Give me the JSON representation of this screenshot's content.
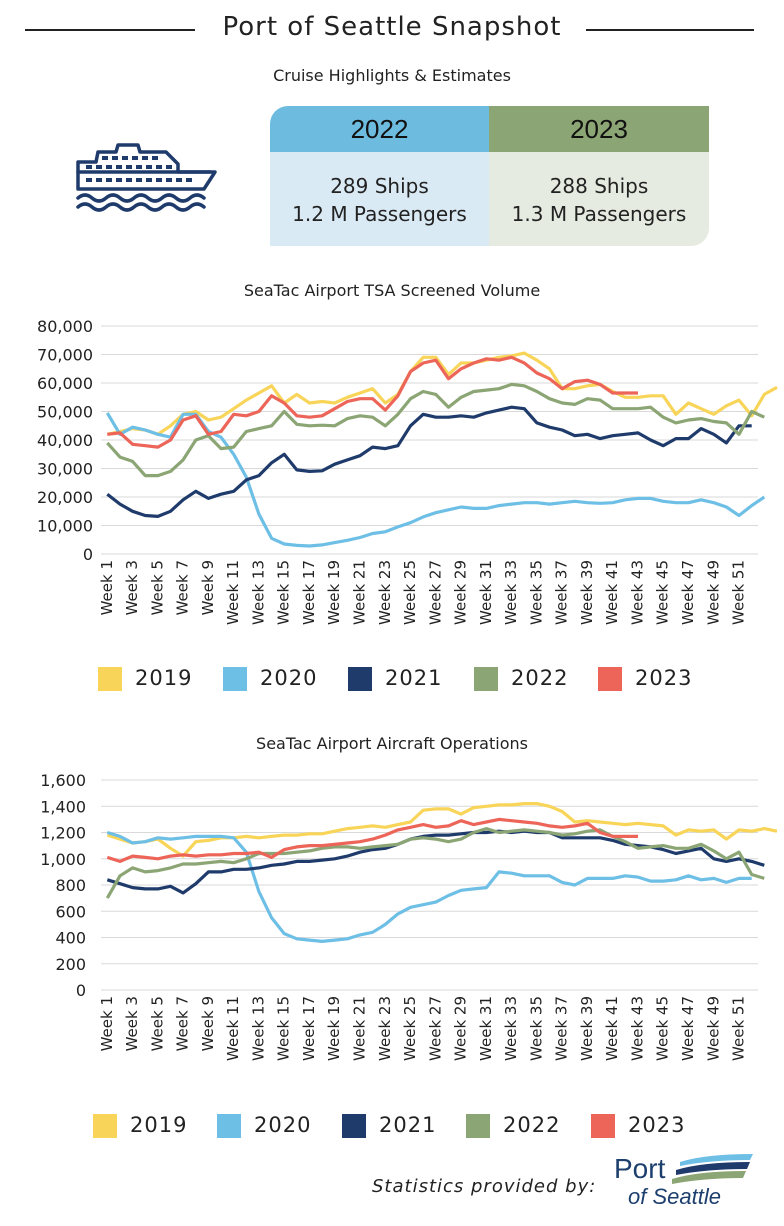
{
  "header": {
    "title": "Port of Seattle Snapshot",
    "subtitle": "Cruise Highlights & Estimates"
  },
  "cruise": {
    "icon": "cruise-ship-icon",
    "y2022": {
      "year": "2022",
      "ships": "289 Ships",
      "passengers": "1.2 M Passengers"
    },
    "y2023": {
      "year": "2023",
      "ships": "288 Ships",
      "passengers": "1.3 M Passengers"
    }
  },
  "colors": {
    "2019": "#f8d559",
    "2020": "#6ebfe6",
    "2021": "#1f3b6b",
    "2022": "#8ca574",
    "2023": "#ec6558"
  },
  "legend": [
    "2019",
    "2020",
    "2021",
    "2022",
    "2023"
  ],
  "footer": {
    "credit": "Statistics provided by:",
    "logo_line1": "Port",
    "logo_line2": "of Seattle"
  },
  "chart_data": [
    {
      "type": "line",
      "title": "SeaTac Airport TSA Screened Volume",
      "xlabel": "",
      "ylabel": "",
      "ylim": [
        0,
        80000
      ],
      "yticks": [
        "0",
        "10,000",
        "20,000",
        "30,000",
        "40,000",
        "50,000",
        "60,000",
        "70,000",
        "80,000"
      ],
      "x_tick_labels": [
        "Week 1",
        "Week 3",
        "Week 5",
        "Week 7",
        "Week 9",
        "Week 11",
        "Week 13",
        "Week 15",
        "Week 17",
        "Week 19",
        "Week 21",
        "Week 23",
        "Week 25",
        "Week 27",
        "Week 29",
        "Week 31",
        "Week 33",
        "Week 35",
        "Week 37",
        "Week 39",
        "Week 41",
        "Week 43",
        "Week 45",
        "Week 47",
        "Week 49",
        "Week 51"
      ],
      "grid": true,
      "legend_position": "bottom",
      "series": [
        {
          "name": "2019",
          "values": [
            42000,
            43000,
            44000,
            43500,
            42000,
            45000,
            49000,
            50000,
            47000,
            48000,
            51000,
            54000,
            56500,
            59000,
            53000,
            56000,
            53000,
            53500,
            53000,
            55000,
            56500,
            58000,
            53000,
            56000,
            64000,
            69000,
            69000,
            63000,
            67000,
            67000,
            68000,
            69000,
            69500,
            70500,
            68000,
            65000,
            58000,
            58000,
            59000,
            59500,
            57000,
            55000,
            55000,
            55500,
            55500,
            49000,
            53000,
            51000,
            49000,
            52000,
            54000,
            48500,
            56000,
            58500
          ]
        },
        {
          "name": "2020",
          "values": [
            49500,
            42000,
            44500,
            43500,
            42000,
            41000,
            49000,
            49000,
            43000,
            41000,
            35000,
            27000,
            14000,
            5500,
            3500,
            3000,
            2800,
            3200,
            4000,
            4800,
            5800,
            7200,
            7800,
            9500,
            11000,
            13000,
            14500,
            15500,
            16500,
            16000,
            16000,
            17000,
            17500,
            18000,
            18000,
            17500,
            18000,
            18500,
            18000,
            17800,
            18000,
            19000,
            19500,
            19500,
            18500,
            18000,
            18000,
            19000,
            18000,
            16500,
            13500,
            17000,
            20000
          ]
        },
        {
          "name": "2021",
          "values": [
            21000,
            17500,
            15000,
            13500,
            13200,
            15000,
            19000,
            22000,
            19500,
            21000,
            22000,
            26000,
            27500,
            32000,
            35000,
            29500,
            29000,
            29200,
            31500,
            33000,
            34500,
            37500,
            37000,
            38000,
            45000,
            49000,
            48000,
            48000,
            48500,
            48000,
            49500,
            50500,
            51500,
            51000,
            46000,
            44500,
            43500,
            41500,
            42000,
            40500,
            41500,
            42000,
            42500,
            40000,
            38000,
            40500,
            40500,
            44000,
            42000,
            39000,
            45000,
            45000
          ]
        },
        {
          "name": "2022",
          "values": [
            39000,
            34000,
            32500,
            27500,
            27500,
            29000,
            33000,
            40000,
            41500,
            37000,
            37500,
            43000,
            44000,
            45000,
            50000,
            45500,
            45000,
            45200,
            45000,
            47500,
            48500,
            48000,
            45000,
            49000,
            54500,
            57000,
            56000,
            51500,
            55000,
            57000,
            57500,
            58000,
            59500,
            59000,
            57000,
            54500,
            53000,
            52500,
            54500,
            54000,
            51000,
            51000,
            51000,
            51500,
            48000,
            46000,
            47000,
            47500,
            46500,
            46000,
            42000,
            50000,
            48000
          ]
        },
        {
          "name": "2023",
          "values": [
            42000,
            42500,
            38500,
            38000,
            37500,
            40000,
            47000,
            48500,
            42000,
            43000,
            49000,
            48500,
            50000,
            55500,
            53000,
            48500,
            48000,
            48500,
            51000,
            53500,
            54500,
            54500,
            50500,
            55500,
            64000,
            67000,
            68000,
            61500,
            65000,
            67000,
            68500,
            68000,
            69000,
            67000,
            63500,
            61500,
            58000,
            60500,
            61000,
            59500,
            56500,
            56500,
            56500
          ]
        }
      ]
    },
    {
      "type": "line",
      "title": "SeaTac Airport Aircraft Operations",
      "xlabel": "",
      "ylabel": "",
      "ylim": [
        0,
        1600
      ],
      "yticks": [
        "0",
        "200",
        "400",
        "600",
        "800",
        "1,000",
        "1,200",
        "1,400",
        "1,600"
      ],
      "x_tick_labels": [
        "Week 1",
        "Week 3",
        "Week 5",
        "Week 7",
        "Week 9",
        "Week 11",
        "Week 13",
        "Week 15",
        "Week 17",
        "Week 19",
        "Week 21",
        "Week 23",
        "Week 25",
        "Week 27",
        "Week 29",
        "Week 31",
        "Week 33",
        "Week 35",
        "Week 37",
        "Week 39",
        "Week 41",
        "Week 43",
        "Week 45",
        "Week 47",
        "Week 49",
        "Week 51"
      ],
      "grid": true,
      "legend_position": "bottom",
      "series": [
        {
          "name": "2019",
          "values": [
            1180,
            1150,
            1120,
            1130,
            1150,
            1080,
            1020,
            1130,
            1140,
            1160,
            1160,
            1170,
            1160,
            1170,
            1180,
            1180,
            1190,
            1190,
            1210,
            1230,
            1240,
            1250,
            1240,
            1260,
            1280,
            1370,
            1380,
            1380,
            1340,
            1390,
            1400,
            1410,
            1410,
            1420,
            1420,
            1400,
            1360,
            1280,
            1290,
            1280,
            1270,
            1260,
            1270,
            1260,
            1250,
            1180,
            1220,
            1210,
            1220,
            1150,
            1220,
            1210,
            1230,
            1210
          ]
        },
        {
          "name": "2020",
          "values": [
            1200,
            1170,
            1120,
            1130,
            1160,
            1150,
            1160,
            1170,
            1170,
            1170,
            1160,
            1050,
            750,
            550,
            430,
            390,
            380,
            370,
            380,
            390,
            420,
            440,
            500,
            580,
            630,
            650,
            670,
            720,
            760,
            770,
            780,
            900,
            890,
            870,
            870,
            870,
            820,
            800,
            850,
            850,
            850,
            870,
            860,
            830,
            830,
            840,
            870,
            840,
            850,
            820,
            850,
            850
          ]
        },
        {
          "name": "2021",
          "values": [
            840,
            810,
            780,
            770,
            770,
            790,
            740,
            810,
            900,
            900,
            920,
            920,
            930,
            950,
            960,
            980,
            980,
            990,
            1000,
            1020,
            1050,
            1070,
            1080,
            1110,
            1150,
            1170,
            1180,
            1180,
            1190,
            1200,
            1200,
            1210,
            1200,
            1210,
            1200,
            1200,
            1160,
            1160,
            1160,
            1160,
            1140,
            1110,
            1100,
            1090,
            1070,
            1040,
            1060,
            1080,
            1000,
            980,
            1000,
            980,
            950
          ]
        },
        {
          "name": "2022",
          "values": [
            700,
            870,
            930,
            900,
            910,
            930,
            960,
            960,
            970,
            980,
            970,
            1000,
            1040,
            1040,
            1040,
            1050,
            1060,
            1080,
            1090,
            1090,
            1080,
            1090,
            1100,
            1110,
            1150,
            1160,
            1150,
            1130,
            1150,
            1200,
            1230,
            1200,
            1210,
            1220,
            1210,
            1200,
            1180,
            1190,
            1210,
            1220,
            1170,
            1130,
            1080,
            1090,
            1100,
            1080,
            1080,
            1110,
            1060,
            1000,
            1050,
            880,
            850
          ]
        },
        {
          "name": "2023",
          "values": [
            1010,
            980,
            1020,
            1010,
            1000,
            1020,
            1030,
            1020,
            1030,
            1030,
            1040,
            1040,
            1050,
            1010,
            1070,
            1090,
            1100,
            1100,
            1110,
            1120,
            1130,
            1150,
            1180,
            1220,
            1240,
            1260,
            1240,
            1250,
            1290,
            1260,
            1280,
            1300,
            1290,
            1280,
            1270,
            1250,
            1240,
            1250,
            1270,
            1200,
            1170,
            1170,
            1170
          ]
        }
      ]
    }
  ]
}
